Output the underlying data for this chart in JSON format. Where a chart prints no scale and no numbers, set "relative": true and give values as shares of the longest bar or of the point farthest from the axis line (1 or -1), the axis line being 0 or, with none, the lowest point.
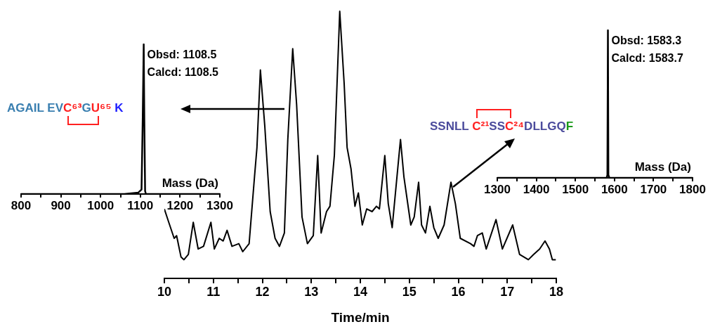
{
  "chart_data": [
    {
      "type": "line",
      "xlabel": "Time/min",
      "relative": true,
      "color": "#000000",
      "xlim": [
        10,
        18
      ],
      "xticks": [
        10,
        {
          "value": 10.5,
          "label": null
        },
        11,
        {
          "value": 11.5,
          "label": null
        },
        12,
        {
          "value": 12.5,
          "label": null
        },
        13,
        {
          "value": 13.5,
          "label": null
        },
        14,
        {
          "value": 14.5,
          "label": null
        },
        15,
        {
          "value": 15.5,
          "label": null
        },
        16,
        {
          "value": 16.5,
          "label": null
        },
        17,
        {
          "value": 17.5,
          "label": null
        },
        18
      ],
      "x": [
        10.0,
        10.09,
        10.2,
        10.25,
        10.34,
        10.4,
        10.49,
        10.59,
        10.69,
        10.8,
        10.95,
        11.02,
        11.12,
        11.2,
        11.28,
        11.38,
        11.52,
        11.6,
        11.73,
        11.84,
        11.89,
        11.96,
        12.05,
        12.16,
        12.26,
        12.35,
        12.45,
        12.52,
        12.62,
        12.7,
        12.81,
        12.92,
        13.04,
        13.13,
        13.2,
        13.31,
        13.38,
        13.47,
        13.58,
        13.67,
        13.73,
        13.81,
        13.89,
        13.96,
        14.04,
        14.13,
        14.24,
        14.33,
        14.39,
        14.5,
        14.57,
        14.65,
        14.82,
        14.89,
        15.03,
        15.1,
        15.19,
        15.25,
        15.33,
        15.42,
        15.5,
        15.59,
        15.71,
        15.85,
        15.94,
        16.04,
        16.25,
        16.32,
        16.39,
        16.49,
        16.57,
        16.77,
        16.9,
        17.11,
        17.25,
        17.43,
        17.54,
        17.66,
        17.77,
        17.86,
        17.92,
        17.99
      ],
      "values": [
        0.26,
        0.21,
        0.15,
        0.16,
        0.08,
        0.07,
        0.09,
        0.21,
        0.11,
        0.12,
        0.21,
        0.11,
        0.15,
        0.14,
        0.18,
        0.12,
        0.13,
        0.1,
        0.13,
        0.38,
        0.49,
        0.78,
        0.57,
        0.25,
        0.15,
        0.12,
        0.17,
        0.52,
        0.86,
        0.65,
        0.23,
        0.13,
        0.16,
        0.46,
        0.17,
        0.25,
        0.27,
        0.46,
        1.0,
        0.73,
        0.49,
        0.41,
        0.27,
        0.32,
        0.2,
        0.26,
        0.25,
        0.27,
        0.26,
        0.46,
        0.28,
        0.19,
        0.52,
        0.38,
        0.2,
        0.23,
        0.36,
        0.2,
        0.17,
        0.27,
        0.19,
        0.15,
        0.2,
        0.36,
        0.28,
        0.15,
        0.13,
        0.12,
        0.16,
        0.17,
        0.11,
        0.22,
        0.11,
        0.2,
        0.09,
        0.07,
        0.09,
        0.11,
        0.14,
        0.11,
        0.07,
        0.07
      ]
    },
    {
      "type": "line",
      "xlabel": "Mass (Da)",
      "relative": true,
      "color": "#000000",
      "xlim": [
        800,
        1300
      ],
      "xticks": [
        800,
        {
          "value": 850,
          "label": null
        },
        900,
        {
          "value": 950,
          "label": null
        },
        1000,
        {
          "value": 1050,
          "label": null
        },
        1100,
        {
          "value": 1150,
          "label": null
        },
        1200,
        {
          "value": 1250,
          "label": null
        },
        1300
      ],
      "x": [
        800,
        1060,
        1095,
        1103,
        1106,
        1108.5,
        1110,
        1112,
        1114,
        1300
      ],
      "values": [
        0,
        0,
        0.01,
        0.03,
        0.5,
        1,
        0.5,
        0.02,
        0,
        0
      ],
      "annotations": [
        "Obsd: 1108.5",
        "Calcd: 1108.5",
        "AGAIL EVC⁶³GU⁶⁵ K"
      ]
    },
    {
      "type": "line",
      "xlabel": "Mass (Da)",
      "relative": true,
      "color": "#000000",
      "xlim": [
        1300,
        1800
      ],
      "xticks": [
        1300,
        {
          "value": 1350,
          "label": null
        },
        1400,
        {
          "value": 1450,
          "label": null
        },
        1500,
        {
          "value": 1550,
          "label": null
        },
        1600,
        {
          "value": 1650,
          "label": null
        },
        1700,
        {
          "value": 1750,
          "label": null
        },
        1800
      ],
      "x": [
        1300,
        1580,
        1582,
        1583.3,
        1584.5,
        1587,
        1800
      ],
      "values": [
        0,
        0,
        0.02,
        1,
        0.02,
        0,
        0
      ],
      "annotations": [
        "Obsd: 1583.3",
        "Calcd: 1583.7",
        "SSNLL C²¹SSC²⁴DLLGQF"
      ]
    }
  ]
}
